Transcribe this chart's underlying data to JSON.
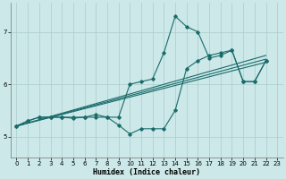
{
  "xlabel": "Humidex (Indice chaleur)",
  "bg_color": "#cce8e8",
  "grid_color": "#aacccc",
  "line_color": "#1a6b6b",
  "xlim": [
    -0.5,
    23.5
  ],
  "ylim": [
    4.6,
    7.55
  ],
  "yticks": [
    5,
    6,
    7
  ],
  "xticks": [
    0,
    1,
    2,
    3,
    4,
    5,
    6,
    7,
    8,
    9,
    10,
    11,
    12,
    13,
    14,
    15,
    16,
    17,
    18,
    19,
    20,
    21,
    22,
    23
  ],
  "series1_x": [
    0,
    1,
    2,
    3,
    4,
    5,
    6,
    7,
    8,
    9,
    10,
    11,
    12,
    13,
    14,
    15,
    16,
    17,
    18,
    19,
    20,
    21,
    22
  ],
  "series1_y": [
    5.2,
    5.3,
    5.37,
    5.37,
    5.37,
    5.37,
    5.37,
    5.37,
    5.37,
    5.37,
    6.0,
    6.05,
    6.1,
    6.6,
    7.3,
    7.1,
    7.0,
    6.5,
    6.55,
    6.65,
    6.05,
    6.05,
    6.45
  ],
  "series2_x": [
    0,
    1,
    2,
    3,
    4,
    5,
    6,
    7,
    8,
    9,
    10,
    11,
    12,
    13,
    14,
    15,
    16,
    17,
    18,
    19,
    20,
    21,
    22
  ],
  "series2_y": [
    5.2,
    5.3,
    5.37,
    5.37,
    5.37,
    5.35,
    5.37,
    5.42,
    5.37,
    5.22,
    5.05,
    5.15,
    5.15,
    5.15,
    5.5,
    6.3,
    6.45,
    6.55,
    6.6,
    6.65,
    6.05,
    6.05,
    6.45
  ],
  "trend1_x": [
    0,
    22
  ],
  "trend1_y": [
    5.2,
    6.42
  ],
  "trend2_x": [
    0,
    22
  ],
  "trend2_y": [
    5.2,
    6.48
  ],
  "trend3_x": [
    0,
    22
  ],
  "trend3_y": [
    5.2,
    6.55
  ]
}
